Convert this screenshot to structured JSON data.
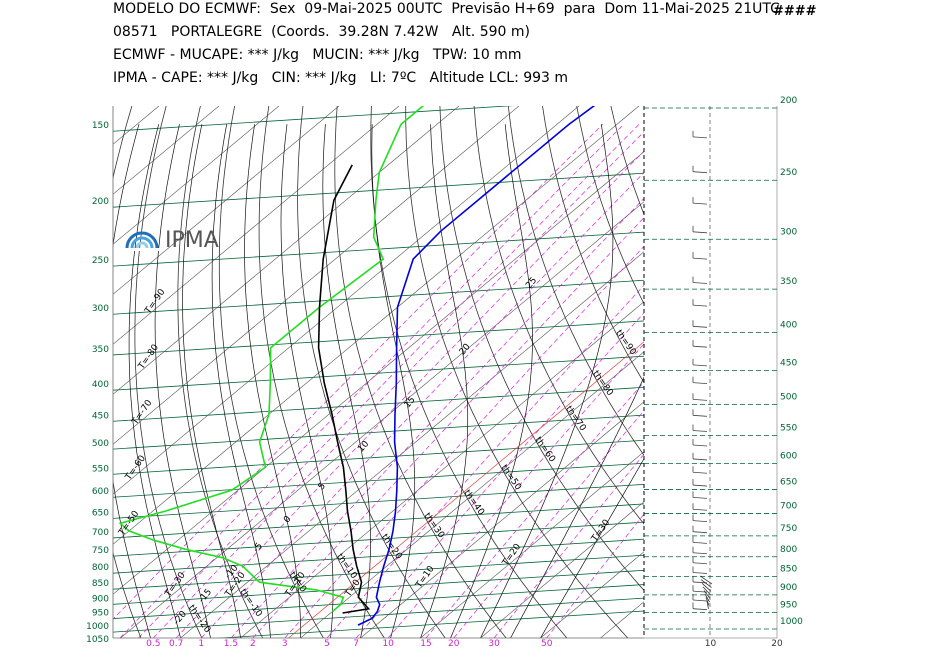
{
  "header": {
    "line1": "MODELO DO ECMWF:  Sex  09-Mai-2025 00UTC  Previsão H+69  para  Dom 11-Mai-2025 21UTC",
    "hash": "####",
    "line2": "08571   PORTALEGRE  (Coords.  39.28N 7.42W   Alt. 590 m)",
    "line3": "ECMWF - MUCAPE: *** J/kg   MUCIN: *** J/kg   TPW: 10 mm",
    "line4": "IPMA - CAPE: *** J/kg   CIN: *** J/kg   LI: 7ºC   Altitude LCL: 993 m"
  },
  "logo": {
    "text": "IPMA"
  },
  "chart_data": {
    "type": "line",
    "skewT": true,
    "pressure_ticks_left": [
      "150",
      "200",
      "250",
      "300",
      "350",
      "400",
      "450",
      "500",
      "550",
      "600",
      "650",
      "700",
      "750",
      "800",
      "850",
      "900",
      "950",
      "1000",
      "1050"
    ],
    "pressure_ticks_right": [
      "200",
      "250",
      "300",
      "350",
      "400",
      "450",
      "500",
      "550",
      "600",
      "650",
      "700",
      "750",
      "800",
      "850",
      "900",
      "950",
      "1000"
    ],
    "mixing_ratio_ticks": [
      "0.5",
      "0.7",
      "1",
      "1.5",
      "2",
      "3",
      "5",
      "7",
      "10",
      "15",
      "20",
      "30",
      "50"
    ],
    "wind_axis_ticks": [
      "10",
      "20"
    ],
    "isotherm_labels": [
      "T=-90",
      "T=-80",
      "T=-70",
      "T=-60",
      "T=-50",
      "T=-40",
      "T=-30",
      "T=-20",
      "T=-10",
      "T=0",
      "T=10",
      "T=20",
      "T=30",
      "T=40"
    ],
    "dry_adiabat_labels": [
      "th=110",
      "th=100",
      "th=90",
      "th=80",
      "th=70",
      "th=60",
      "th=50",
      "th=40",
      "th=30",
      "th=20",
      "th=10",
      "th=0",
      "th=-10",
      "th=-20"
    ],
    "moist_adiabat_labels": [
      "25",
      "20",
      "15",
      "10",
      "5",
      "0",
      "-5",
      "-10",
      "-15",
      "-20"
    ],
    "series": [
      {
        "color": "#0000dd",
        "points": [
          [
            1000,
            7
          ],
          [
            975,
            8
          ],
          [
            950,
            7.5
          ],
          [
            925,
            6.5
          ],
          [
            900,
            4.5
          ],
          [
            850,
            2
          ],
          [
            800,
            -0.5
          ],
          [
            750,
            -3
          ],
          [
            700,
            -6
          ],
          [
            650,
            -9.5
          ],
          [
            600,
            -13.5
          ],
          [
            550,
            -18
          ],
          [
            500,
            -23.5
          ],
          [
            450,
            -29
          ],
          [
            400,
            -35
          ],
          [
            350,
            -42
          ],
          [
            300,
            -50
          ],
          [
            250,
            -57
          ],
          [
            225,
            -58
          ],
          [
            200,
            -58
          ],
          [
            150,
            -58
          ],
          [
            130,
            -57
          ]
        ]
      },
      {
        "color": "#22dd22",
        "points": [
          [
            950,
            0
          ],
          [
            925,
            0
          ],
          [
            900,
            -1
          ],
          [
            875,
            -7
          ],
          [
            850,
            -18
          ],
          [
            800,
            -24
          ],
          [
            775,
            -29
          ],
          [
            750,
            -37
          ],
          [
            725,
            -44
          ],
          [
            700,
            -50
          ],
          [
            680,
            -53
          ],
          [
            650,
            -48
          ],
          [
            600,
            -41
          ],
          [
            550,
            -40
          ],
          [
            500,
            -46
          ],
          [
            450,
            -50
          ],
          [
            400,
            -56
          ],
          [
            350,
            -63
          ],
          [
            300,
            -63
          ],
          [
            250,
            -62
          ],
          [
            230,
            -68
          ],
          [
            200,
            -75
          ],
          [
            180,
            -80
          ],
          [
            150,
            -86
          ],
          [
            125,
            -86
          ]
        ]
      },
      {
        "color": "#000000",
        "points": [
          [
            955,
            2
          ],
          [
            940,
            5.5
          ],
          [
            900,
            1.5
          ],
          [
            850,
            -1
          ],
          [
            800,
            -5
          ],
          [
            750,
            -9
          ],
          [
            700,
            -13
          ],
          [
            650,
            -17.5
          ],
          [
            600,
            -22
          ],
          [
            550,
            -27
          ],
          [
            500,
            -33
          ],
          [
            450,
            -39.5
          ],
          [
            400,
            -47
          ],
          [
            350,
            -55
          ],
          [
            300,
            -63
          ],
          [
            250,
            -72
          ],
          [
            200,
            -82
          ],
          [
            175,
            -86
          ]
        ]
      }
    ]
  }
}
